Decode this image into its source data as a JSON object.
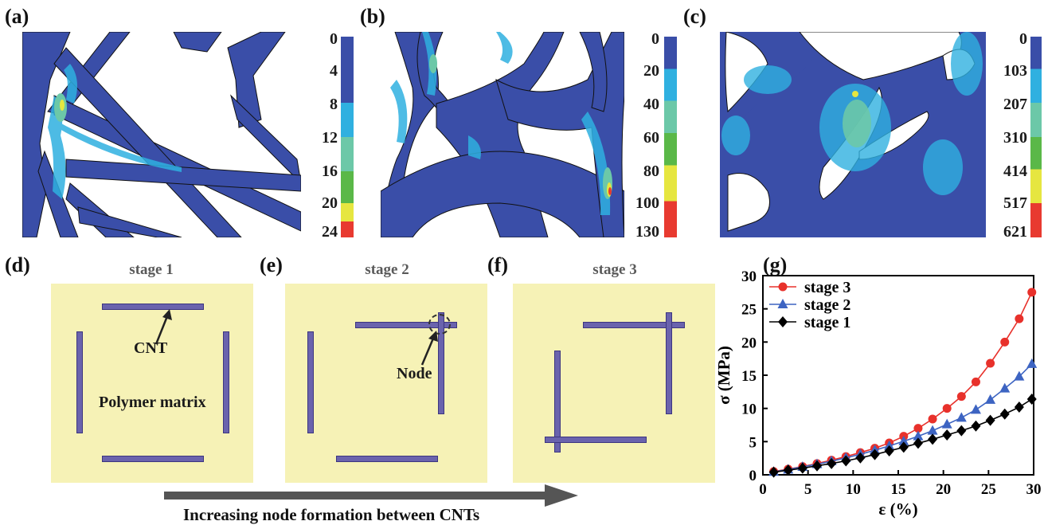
{
  "panels": {
    "a": {
      "label": "(a)",
      "scale": [
        "0",
        "4",
        "8",
        "12",
        "16",
        "20",
        "24"
      ]
    },
    "b": {
      "label": "(b)",
      "scale": [
        "0",
        "20",
        "40",
        "60",
        "80",
        "100",
        "130"
      ]
    },
    "c": {
      "label": "(c)",
      "scale": [
        "0",
        "103",
        "207",
        "310",
        "414",
        "517",
        "621"
      ]
    },
    "d": {
      "label": "(d)",
      "title": "stage 1",
      "cnt_label": "CNT",
      "matrix_label": "Polymer matrix"
    },
    "e": {
      "label": "(e)",
      "title": "stage 2",
      "node_label": "Node"
    },
    "f": {
      "label": "(f)",
      "title": "stage 3"
    },
    "g": {
      "label": "(g)"
    }
  },
  "colorbar_colors": [
    "#3a4ea8",
    "#2fb0e0",
    "#6cc8a8",
    "#5ab848",
    "#e6e640",
    "#e83a30"
  ],
  "mesh_colors": {
    "base": "#3a4ea8",
    "light": "#2fb0e0",
    "mid": "#6cc8a8",
    "hot": "#e6e640",
    "peak": "#e83a30"
  },
  "arrow_caption": "Increasing node formation between CNTs",
  "chart_data": {
    "type": "line",
    "xlabel": "ε (%)",
    "ylabel": "σ (MPa)",
    "xlim": [
      0,
      30
    ],
    "ylim": [
      0,
      30
    ],
    "xticks": [
      0,
      5,
      10,
      15,
      20,
      25,
      30
    ],
    "yticks": [
      0,
      5,
      10,
      15,
      20,
      25,
      30
    ],
    "grid": false,
    "legend_position": "top-left",
    "x": [
      1.2,
      2.8,
      4.4,
      6.0,
      7.6,
      9.2,
      10.8,
      12.4,
      14.0,
      15.6,
      17.2,
      18.8,
      20.4,
      22.0,
      23.6,
      25.2,
      26.8,
      28.4,
      29.8
    ],
    "series": [
      {
        "name": "stage 3",
        "color": "#e8312b",
        "marker": "circle",
        "values": [
          0.5,
          0.85,
          1.25,
          1.7,
          2.2,
          2.75,
          3.35,
          4.0,
          4.8,
          5.8,
          7.0,
          8.4,
          10.0,
          11.8,
          14.0,
          16.8,
          20.0,
          23.5,
          27.5
        ]
      },
      {
        "name": "stage 2",
        "color": "#3d64c2",
        "marker": "triangle",
        "values": [
          0.45,
          0.8,
          1.2,
          1.6,
          2.05,
          2.55,
          3.1,
          3.7,
          4.35,
          5.05,
          5.8,
          6.65,
          7.6,
          8.6,
          9.8,
          11.3,
          13.0,
          14.8,
          16.7
        ]
      },
      {
        "name": "stage 1",
        "color": "#000000",
        "marker": "diamond",
        "values": [
          0.4,
          0.7,
          1.0,
          1.35,
          1.7,
          2.1,
          2.55,
          3.05,
          3.6,
          4.15,
          4.75,
          5.35,
          6.0,
          6.65,
          7.35,
          8.2,
          9.15,
          10.2,
          11.4
        ]
      }
    ]
  }
}
